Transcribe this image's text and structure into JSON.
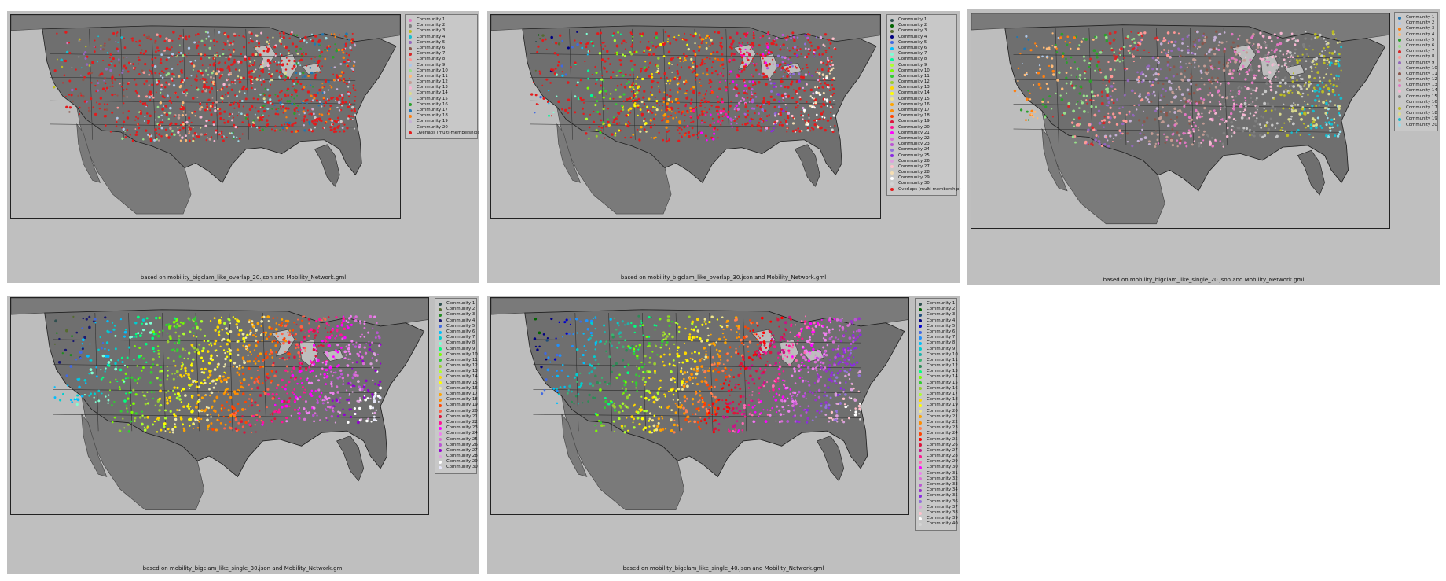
{
  "panels": [
    {
      "caption": "based on mobility_bigclam_like_overlap_20.json and Mobility_Network.gml",
      "legend": [
        "Community 1",
        "Community 2",
        "Community 3",
        "Community 4",
        "Community 5",
        "Community 6",
        "Community 7",
        "Community 8",
        "Community 9",
        "Community 10",
        "Community 11",
        "Community 12",
        "Community 13",
        "Community 14",
        "Community 15",
        "Community 16",
        "Community 17",
        "Community 18",
        "Community 19",
        "Community 20",
        "Overlaps (multi-membership)"
      ],
      "colors": [
        "#e377c2",
        "#7f7f7f",
        "#bcbd22",
        "#17becf",
        "#9467bd",
        "#8c564b",
        "#d62728",
        "#ff9896",
        "#aec7e8",
        "#98df8a",
        "#ffbb78",
        "#c49c94",
        "#f7b6d2",
        "#dbdb8d",
        "#9edae5",
        "#2ca02c",
        "#1f77b4",
        "#ff7f0e",
        "#c5b0d5",
        "#c7c7c7",
        "#e41a1c"
      ]
    },
    {
      "caption": "based on mobility_bigclam_like_overlap_30.json and Mobility_Network.gml",
      "legend": [
        "Community 1",
        "Community 2",
        "Community 3",
        "Community 4",
        "Community 5",
        "Community 6",
        "Community 7",
        "Community 8",
        "Community 9",
        "Community 10",
        "Community 11",
        "Community 12",
        "Community 13",
        "Community 14",
        "Community 15",
        "Community 16",
        "Community 17",
        "Community 18",
        "Community 19",
        "Community 20",
        "Community 21",
        "Community 22",
        "Community 23",
        "Community 24",
        "Community 25",
        "Community 26",
        "Community 27",
        "Community 28",
        "Community 29",
        "Community 30",
        "Overlaps (multi-membership)"
      ],
      "colors": [
        "#2f4f4f",
        "#006400",
        "#556b2f",
        "#000080",
        "#4169e1",
        "#00bfff",
        "#7fffd4",
        "#00fa9a",
        "#adff2f",
        "#7cfc00",
        "#32cd32",
        "#9acd32",
        "#ffd700",
        "#ffff00",
        "#f0e68c",
        "#ffa500",
        "#ff8c00",
        "#ff4500",
        "#dc143c",
        "#ff1493",
        "#ff00ff",
        "#da70d6",
        "#ba55d3",
        "#9370db",
        "#8a2be2",
        "#dda0dd",
        "#ffc0cb",
        "#f5deb3",
        "#ffffff",
        "#d3d3d3",
        "#e41a1c"
      ]
    },
    {
      "caption": "based on mobility_bigclam_like_single_20.json and Mobility_Network.gml",
      "legend": [
        "Community 1",
        "Community 2",
        "Community 3",
        "Community 4",
        "Community 5",
        "Community 6",
        "Community 7",
        "Community 8",
        "Community 9",
        "Community 10",
        "Community 11",
        "Community 12",
        "Community 13",
        "Community 14",
        "Community 15",
        "Community 16",
        "Community 17",
        "Community 18",
        "Community 19",
        "Community 20"
      ],
      "colors": [
        "#1f77b4",
        "#aec7e8",
        "#ff7f0e",
        "#ffbb78",
        "#2ca02c",
        "#98df8a",
        "#d62728",
        "#ff9896",
        "#9467bd",
        "#c5b0d5",
        "#8c564b",
        "#c49c94",
        "#e377c2",
        "#f7b6d2",
        "#7f7f7f",
        "#c7c7c7",
        "#bcbd22",
        "#dbdb8d",
        "#17becf",
        "#9edae5"
      ]
    },
    {
      "caption": "based on mobility_bigclam_like_single_30.json and Mobility_Network.gml",
      "legend": [
        "Community 1",
        "Community 2",
        "Community 3",
        "Community 4",
        "Community 5",
        "Community 6",
        "Community 7",
        "Community 8",
        "Community 9",
        "Community 10",
        "Community 11",
        "Community 12",
        "Community 13",
        "Community 14",
        "Community 15",
        "Community 16",
        "Community 17",
        "Community 18",
        "Community 19",
        "Community 20",
        "Community 21",
        "Community 22",
        "Community 23",
        "Community 24",
        "Community 25",
        "Community 26",
        "Community 27",
        "Community 28",
        "Community 29",
        "Community 30"
      ],
      "colors": [
        "#2f4f4f",
        "#556b2f",
        "#228b22",
        "#191970",
        "#4169e1",
        "#00bfff",
        "#00ced1",
        "#7fffd4",
        "#00ff7f",
        "#7cfc00",
        "#32cd32",
        "#9acd32",
        "#adff2f",
        "#ffd700",
        "#ffff00",
        "#eee8aa",
        "#ffa500",
        "#ff8c00",
        "#ff4500",
        "#ff6347",
        "#dc143c",
        "#ff1493",
        "#ff00ff",
        "#ee82ee",
        "#da70d6",
        "#ba55d3",
        "#9400d3",
        "#dda0dd",
        "#ffffff",
        "#e6e6fa"
      ]
    },
    {
      "caption": "based on mobility_bigclam_like_single_40.json and Mobility_Network.gml",
      "legend": [
        "Community 1",
        "Community 2",
        "Community 3",
        "Community 4",
        "Community 5",
        "Community 6",
        "Community 7",
        "Community 8",
        "Community 9",
        "Community 10",
        "Community 11",
        "Community 12",
        "Community 13",
        "Community 14",
        "Community 15",
        "Community 16",
        "Community 17",
        "Community 18",
        "Community 19",
        "Community 20",
        "Community 21",
        "Community 22",
        "Community 23",
        "Community 24",
        "Community 25",
        "Community 26",
        "Community 27",
        "Community 28",
        "Community 29",
        "Community 30",
        "Community 31",
        "Community 32",
        "Community 33",
        "Community 34",
        "Community 35",
        "Community 36",
        "Community 37",
        "Community 38",
        "Community 39",
        "Community 40"
      ],
      "colors": [
        "#2f4f4f",
        "#006400",
        "#1e4d7a",
        "#000080",
        "#0000cd",
        "#4169e1",
        "#1e90ff",
        "#00bfff",
        "#00ced1",
        "#20b2aa",
        "#3cb371",
        "#2e8b57",
        "#00ff7f",
        "#7cfc00",
        "#32cd32",
        "#9acd32",
        "#adff2f",
        "#ffd700",
        "#ffff00",
        "#f0e68c",
        "#ffa500",
        "#ff8c00",
        "#ff7f50",
        "#ff4500",
        "#ff0000",
        "#dc143c",
        "#c71585",
        "#ff1493",
        "#ff69b4",
        "#ff00ff",
        "#ee82ee",
        "#da70d6",
        "#ba55d3",
        "#9932cc",
        "#8a2be2",
        "#9370db",
        "#dda0dd",
        "#ffc0cb",
        "#ffffff",
        "#d3d3d3"
      ]
    }
  ]
}
